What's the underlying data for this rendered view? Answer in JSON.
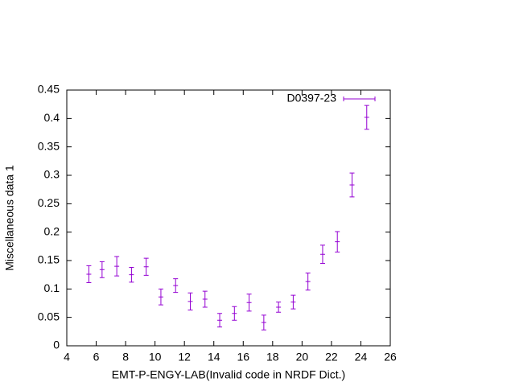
{
  "chart_data": {
    "type": "errorbar",
    "xlabel": "EMT-P-ENGY-LAB(Invalid code in NRDF Dict.)",
    "ylabel": "Miscellaneous data 1",
    "series": [
      {
        "name": "D0397-23",
        "color": "#9400d3",
        "x": [
          5.5,
          6.4,
          7.4,
          8.4,
          9.4,
          10.4,
          11.4,
          12.4,
          13.4,
          14.4,
          15.4,
          16.4,
          17.4,
          18.4,
          19.4,
          20.4,
          21.4,
          22.4,
          23.4,
          24.4
        ],
        "values": [
          0.126,
          0.134,
          0.14,
          0.125,
          0.139,
          0.086,
          0.106,
          0.078,
          0.082,
          0.045,
          0.057,
          0.076,
          0.041,
          0.068,
          0.077,
          0.113,
          0.161,
          0.183,
          0.283,
          0.402
        ],
        "errors": [
          0.015,
          0.014,
          0.017,
          0.013,
          0.015,
          0.014,
          0.012,
          0.015,
          0.014,
          0.012,
          0.012,
          0.015,
          0.013,
          0.009,
          0.012,
          0.015,
          0.016,
          0.018,
          0.021,
          0.021
        ]
      }
    ],
    "xlim": [
      4,
      26
    ],
    "xticks": [
      4,
      6,
      8,
      10,
      12,
      14,
      16,
      18,
      20,
      22,
      24,
      26
    ],
    "ylim": [
      0,
      0.45
    ],
    "yticks": [
      0,
      0.05,
      0.1,
      0.15,
      0.2,
      0.25,
      0.3,
      0.35,
      0.4,
      0.45
    ],
    "legend": "top-right"
  }
}
